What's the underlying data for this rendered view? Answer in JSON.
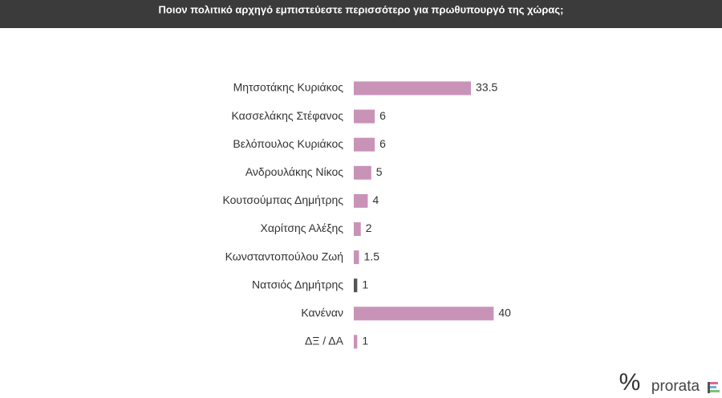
{
  "chart_data": {
    "type": "bar",
    "orientation": "horizontal",
    "title": "Ποιον πολιτικό αρχηγό εμπιστεύεστε περισσότερο για πρωθυπουργό της χώρας;",
    "categories": [
      "Μητσοτάκης Κυριάκος",
      "Κασσελάκης Στέφανος",
      "Βελόπουλος Κυριάκος",
      "Ανδρουλάκης Νίκος",
      "Κουτσούμπας Δημήτρης",
      "Χαρίτσης Αλέξης",
      "Κωνσταντοπούλου Ζωή",
      "Νατσιός Δημήτρης",
      "Κανέναν",
      "ΔΞ / ΔΑ"
    ],
    "values": [
      33.5,
      6,
      6,
      5,
      4,
      2,
      1.5,
      1,
      40,
      1
    ],
    "colors": [
      "#c993b8",
      "#c993b8",
      "#c993b8",
      "#c993b8",
      "#c993b8",
      "#c993b8",
      "#c993b8",
      "#555555",
      "#c993b8",
      "#c993b8"
    ]
  },
  "logo": {
    "symbol": "%",
    "text": "prorata"
  }
}
